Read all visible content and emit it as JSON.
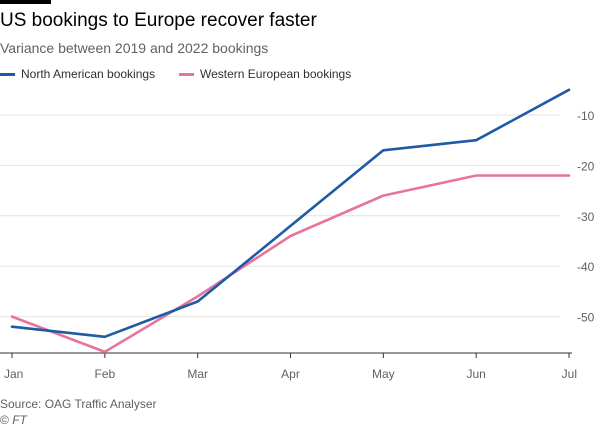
{
  "title": "US bookings to Europe recover faster",
  "subtitle": "Variance between 2019 and 2022 bookings",
  "source": "Source: OAG Traffic Analyser",
  "copyright_symbol": "©",
  "copyright_brand": "FT",
  "colors": {
    "north_american": "#1f5aa6",
    "western_european": "#e7749b",
    "grid": "#e6e3df",
    "axis": "#33302e",
    "tick_label": "#66605c"
  },
  "chart_data": {
    "type": "line",
    "title": "US bookings to Europe recover faster",
    "subtitle": "Variance between 2019 and 2022 bookings",
    "xlabel": "",
    "ylabel": "",
    "categories": [
      "Jan",
      "Feb",
      "Mar",
      "Apr",
      "May",
      "Jun",
      "Jul"
    ],
    "ylim": [
      -57,
      -3
    ],
    "yticks": [
      -10,
      -20,
      -30,
      -40,
      -50
    ],
    "ytick_labels": [
      "-10",
      "-20",
      "-30",
      "-40",
      "-50"
    ],
    "y_axis_side": "right",
    "grid": true,
    "legend_position": "top-left",
    "series": [
      {
        "name": "North American bookings",
        "color": "#1f5aa6",
        "values": [
          -52,
          -54,
          -47,
          -32,
          -17,
          -15,
          -5
        ]
      },
      {
        "name": "Western European bookings",
        "color": "#e7749b",
        "values": [
          -50,
          -57,
          -46,
          -34,
          -26,
          -22,
          -22
        ]
      }
    ]
  }
}
